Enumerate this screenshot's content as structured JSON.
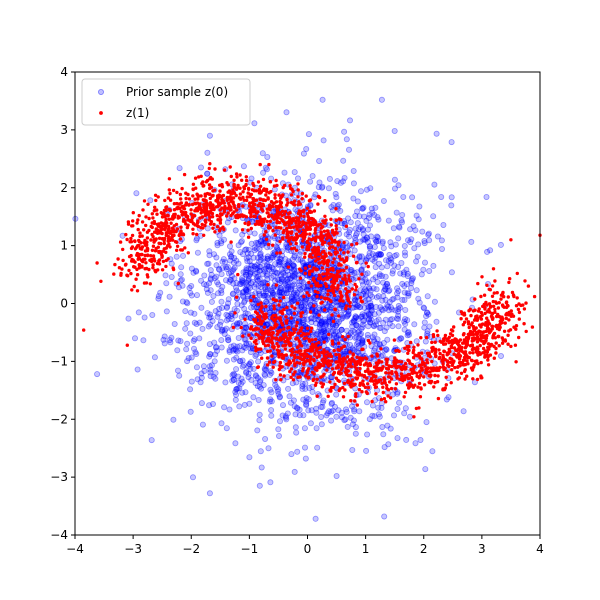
{
  "chart_data": {
    "type": "scatter",
    "xlim": [
      -4,
      4
    ],
    "ylim": [
      -4,
      4
    ],
    "x_ticks": [
      -4,
      -3,
      -2,
      -1,
      0,
      1,
      2,
      3,
      4
    ],
    "y_ticks": [
      -4,
      -3,
      -2,
      -1,
      0,
      1,
      2,
      3,
      4
    ],
    "x_tick_labels": [
      "−4",
      "−3",
      "−2",
      "−1",
      "0",
      "1",
      "2",
      "3",
      "4"
    ],
    "y_tick_labels": [
      "−4",
      "−3",
      "−2",
      "−1",
      "0",
      "1",
      "2",
      "3",
      "4"
    ],
    "grid": false,
    "legend_position": "top-left",
    "series": [
      {
        "name": "Prior sample z(0)",
        "color": "#0000ff",
        "marker": "hollow-circle",
        "alpha": 0.25,
        "distribution": "standard-normal",
        "approx_count": 2500,
        "points": [
          [
            0.26,
            3.52
          ],
          [
            1.28,
            3.52
          ],
          [
            -1.68,
            2.9
          ],
          [
            0.14,
            -3.72
          ],
          [
            1.32,
            -3.68
          ],
          [
            -1.68,
            -3.28
          ],
          [
            -0.82,
            -3.15
          ],
          [
            -3.62,
            -1.22
          ],
          [
            -2.68,
            -2.36
          ],
          [
            2.3,
            1.84
          ],
          [
            3.08,
            1.84
          ],
          [
            -2.2,
            2.34
          ],
          [
            2.88,
            -1.36
          ],
          [
            0.5,
            -2.98
          ],
          [
            1.5,
            2.98
          ]
        ]
      },
      {
        "name": "z(1)",
        "color": "#ff0000",
        "marker": "filled-circle",
        "alpha": 1.0,
        "shape": "two-moons",
        "approx_count": 2500,
        "points": [
          [
            -3.85,
            -0.46
          ],
          [
            -3.62,
            0.7
          ],
          [
            -3.1,
            -0.72
          ],
          [
            -2.9,
            1.0
          ],
          [
            -2.2,
            1.72
          ],
          [
            -1.5,
            1.86
          ],
          [
            -0.8,
            1.8
          ],
          [
            0.0,
            1.28
          ],
          [
            0.4,
            0.5
          ],
          [
            0.2,
            -0.2
          ],
          [
            -1.2,
            0.5
          ],
          [
            -0.6,
            -0.5
          ],
          [
            0.0,
            -0.9
          ],
          [
            0.6,
            -1.1
          ],
          [
            1.4,
            -1.2
          ],
          [
            2.2,
            -0.8
          ],
          [
            2.8,
            -0.1
          ],
          [
            3.2,
            0.6
          ],
          [
            3.5,
            1.1
          ],
          [
            4.0,
            1.18
          ],
          [
            3.8,
            0.3
          ],
          [
            3.3,
            -0.45
          ]
        ]
      }
    ]
  }
}
